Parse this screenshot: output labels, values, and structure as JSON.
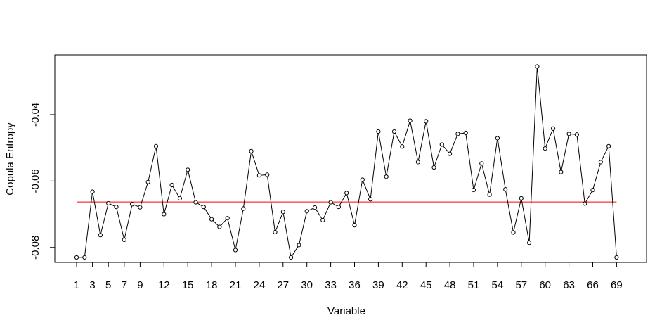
{
  "chart_data": {
    "type": "line",
    "title": "",
    "xlabel": "Variable",
    "ylabel": "Copula Entropy",
    "x": [
      1,
      2,
      3,
      4,
      5,
      6,
      7,
      8,
      9,
      10,
      11,
      12,
      13,
      14,
      15,
      16,
      17,
      18,
      19,
      20,
      21,
      22,
      23,
      24,
      25,
      26,
      27,
      28,
      29,
      30,
      31,
      32,
      33,
      34,
      35,
      36,
      37,
      38,
      39,
      40,
      41,
      42,
      43,
      44,
      45,
      46,
      47,
      48,
      49,
      50,
      51,
      52,
      53,
      54,
      55,
      56,
      57,
      58,
      59,
      60,
      61,
      62,
      63,
      64,
      65,
      66,
      67,
      68,
      69
    ],
    "series": [
      {
        "values": [
          -0.083,
          -0.083,
          -0.0632,
          -0.0763,
          -0.0667,
          -0.0678,
          -0.0777,
          -0.067,
          -0.0679,
          -0.0603,
          -0.0495,
          -0.07,
          -0.0612,
          -0.0652,
          -0.0566,
          -0.0664,
          -0.0678,
          -0.0715,
          -0.0738,
          -0.0712,
          -0.0808,
          -0.0683,
          -0.051,
          -0.0583,
          -0.0581,
          -0.0754,
          -0.0693,
          -0.083,
          -0.0793,
          -0.0691,
          -0.068,
          -0.0718,
          -0.0664,
          -0.0678,
          -0.0636,
          -0.0733,
          -0.0596,
          -0.0655,
          -0.0451,
          -0.0587,
          -0.0451,
          -0.0496,
          -0.0418,
          -0.0543,
          -0.042,
          -0.0559,
          -0.049,
          -0.0518,
          -0.0458,
          -0.0455,
          -0.0627,
          -0.0547,
          -0.0641,
          -0.0471,
          -0.0625,
          -0.0755,
          -0.0652,
          -0.0786,
          -0.0255,
          -0.0502,
          -0.0442,
          -0.0573,
          -0.0458,
          -0.046,
          -0.0668,
          -0.0627,
          -0.0543,
          -0.0495,
          -0.083
        ],
        "color": "#000000"
      }
    ],
    "reference_line": {
      "y": -0.0663,
      "color": "#ff0000"
    },
    "ylim": [
      -0.0845,
      -0.022
    ],
    "yticks": [
      -0.08,
      -0.06,
      -0.04
    ],
    "ytick_labels": [
      "-0.08",
      "-0.06",
      "-0.04"
    ],
    "xticks": [
      1,
      3,
      5,
      7,
      9,
      12,
      15,
      18,
      21,
      24,
      27,
      30,
      33,
      36,
      39,
      42,
      45,
      48,
      51,
      54,
      57,
      60,
      63,
      66,
      69
    ],
    "xtick_labels": [
      "1",
      "3",
      "5",
      "7",
      "9",
      "12",
      "15",
      "18",
      "21",
      "24",
      "27",
      "30",
      "33",
      "36",
      "39",
      "42",
      "45",
      "48",
      "51",
      "54",
      "57",
      "60",
      "63",
      "66",
      "69"
    ],
    "grid": false,
    "legend": "none"
  }
}
